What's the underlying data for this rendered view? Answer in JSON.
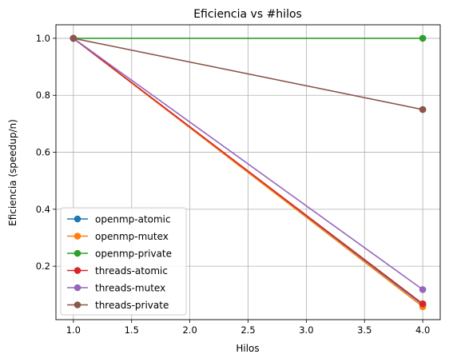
{
  "chart_data": {
    "type": "line",
    "title": "Eficiencia vs #hilos",
    "xlabel": "Hilos",
    "ylabel": "Eficiencia (speedup/n)",
    "x": [
      1,
      4
    ],
    "xlim": [
      0.85,
      4.15
    ],
    "ylim": [
      0.0125,
      1.0475
    ],
    "xticks": [
      1.0,
      1.5,
      2.0,
      2.5,
      3.0,
      3.5,
      4.0
    ],
    "xtick_labels": [
      "1.0",
      "1.5",
      "2.0",
      "2.5",
      "3.0",
      "3.5",
      "4.0"
    ],
    "yticks": [
      0.2,
      0.4,
      0.6,
      0.8,
      1.0
    ],
    "ytick_labels": [
      "0.2",
      "0.4",
      "0.6",
      "0.8",
      "1.0"
    ],
    "grid": true,
    "legend_position": "lower-left",
    "series": [
      {
        "name": "openmp-atomic",
        "color": "#1f77b4",
        "values": [
          1.0,
          0.065
        ]
      },
      {
        "name": "openmp-mutex",
        "color": "#ff7f0e",
        "values": [
          1.0,
          0.058
        ]
      },
      {
        "name": "openmp-private",
        "color": "#2ca02c",
        "values": [
          1.0,
          1.0
        ]
      },
      {
        "name": "threads-atomic",
        "color": "#d62728",
        "values": [
          1.0,
          0.068
        ]
      },
      {
        "name": "threads-mutex",
        "color": "#9467bd",
        "values": [
          1.0,
          0.118
        ]
      },
      {
        "name": "threads-private",
        "color": "#8c564b",
        "values": [
          1.0,
          0.75
        ]
      }
    ]
  }
}
